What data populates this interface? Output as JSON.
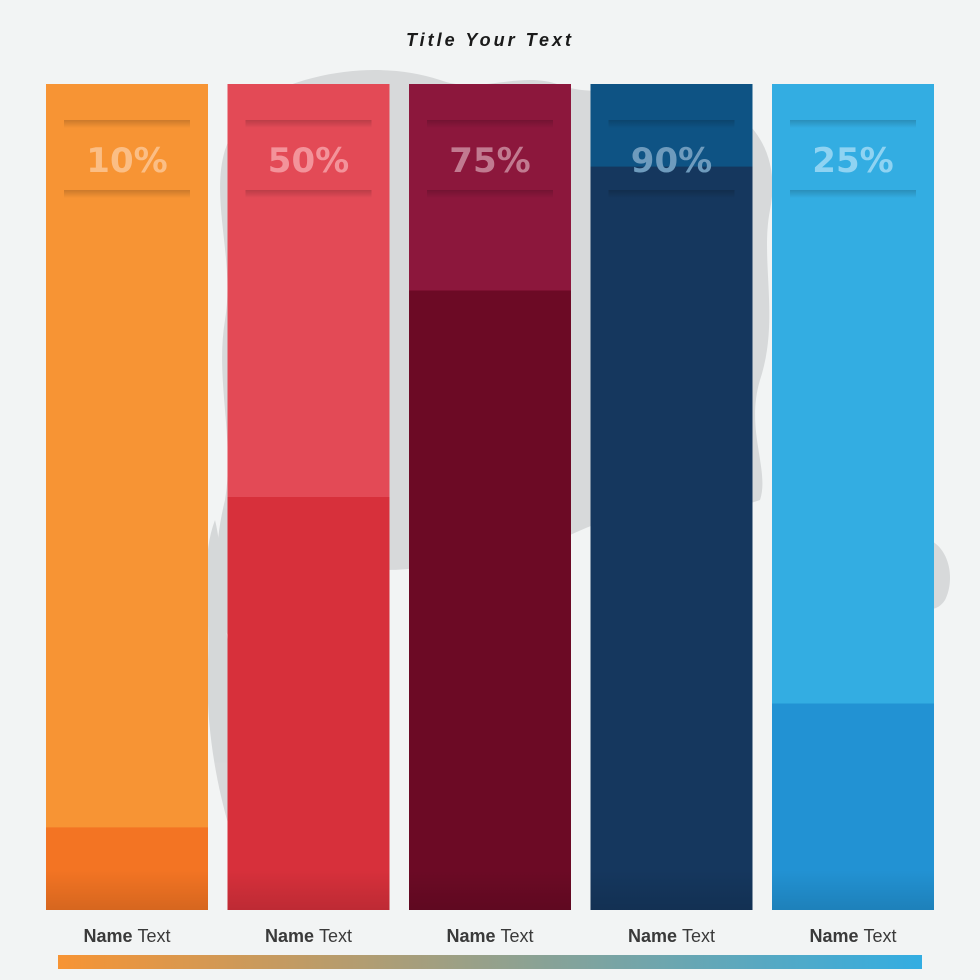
{
  "chart_data": {
    "type": "bar",
    "title": "Title Your Text",
    "ylim": [
      0,
      100
    ],
    "categories": [
      {
        "bold": "Name",
        "text": "Text"
      },
      {
        "bold": "Name",
        "text": "Text"
      },
      {
        "bold": "Name",
        "text": "Text"
      },
      {
        "bold": "Name",
        "text": "Text"
      },
      {
        "bold": "Name",
        "text": "Text"
      }
    ],
    "values": [
      10,
      50,
      75,
      90,
      25
    ],
    "value_labels": [
      "10%",
      "50%",
      "75%",
      "90%",
      "25%"
    ],
    "colors": [
      {
        "light": "#f79434",
        "dark": "#f37423",
        "label": "#fbbe85"
      },
      {
        "light": "#e34a56",
        "dark": "#d7303b",
        "label": "#f3939a"
      },
      {
        "light": "#8c173c",
        "dark": "#6c0a25",
        "label": "#c17a90"
      },
      {
        "light": "#0e5384",
        "dark": "#15375e",
        "label": "#6e9bbd"
      },
      {
        "light": "#33ade2",
        "dark": "#2292d3",
        "label": "#8fd3f2"
      }
    ],
    "gradient_bar": [
      "#f79434",
      "#d7303b",
      "#6c0a25",
      "#15375e",
      "#33ade2"
    ]
  }
}
